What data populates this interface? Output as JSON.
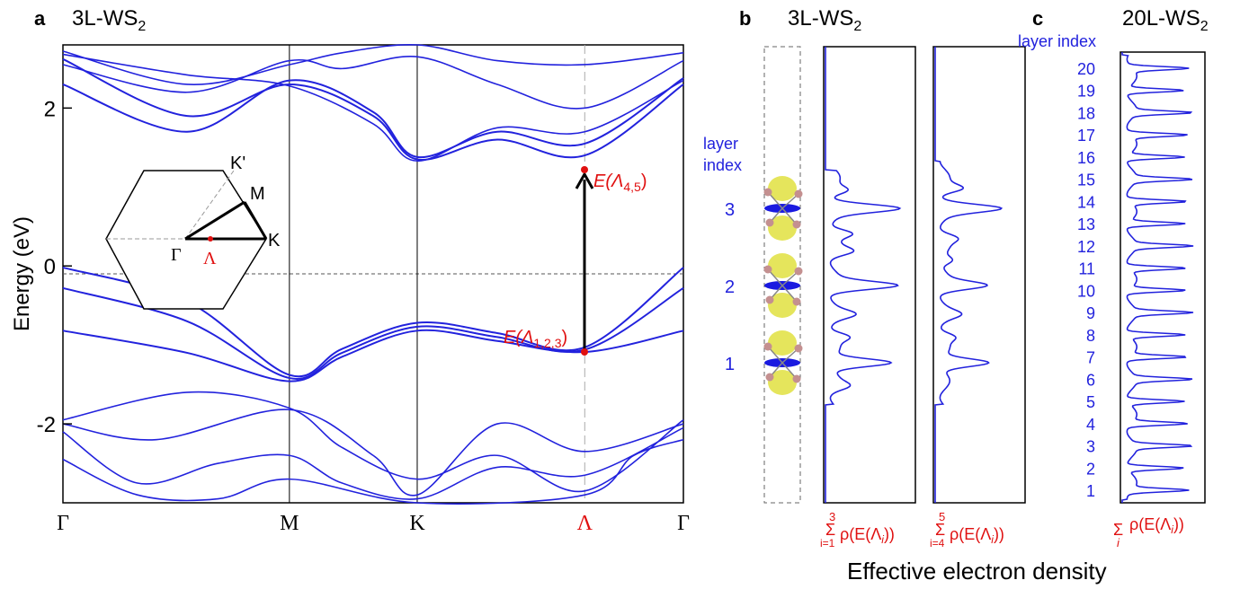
{
  "panel_a": {
    "letter": "a",
    "title_main": "3L-WS",
    "title_sub": "2",
    "ylabel": "Energy (eV)",
    "yticks": [
      {
        "v": 2,
        "label": "2"
      },
      {
        "v": 0,
        "label": "0"
      },
      {
        "v": -2,
        "label": "-2"
      }
    ],
    "kpoints": [
      {
        "label": "Γ",
        "x": 0.0,
        "red": false
      },
      {
        "label": "M",
        "x": 0.365,
        "red": false
      },
      {
        "label": "K",
        "x": 0.571,
        "red": false
      },
      {
        "label": "Λ",
        "x": 0.841,
        "red": true
      },
      {
        "label": "Γ",
        "x": 1.0,
        "red": false
      }
    ],
    "lower_point": {
      "label_main": "E(Λ",
      "label_sub": "1,2,3",
      "label_end": ")",
      "x": 0.841,
      "e": -1.03
    },
    "upper_point": {
      "label_main": "E(Λ",
      "label_sub": "4,5",
      "label_end": ")",
      "x": 0.841,
      "e": 1.4
    },
    "bz": {
      "K_prime": "K'",
      "M": "M",
      "K": "K",
      "Gamma": "Γ",
      "Lambda": "Λ"
    }
  },
  "panel_b": {
    "letter": "b",
    "title_main": "3L-WS",
    "title_sub": "2",
    "layer_axis_title_1": "layer",
    "layer_axis_title_2": "index",
    "layers": [
      "3",
      "2",
      "1"
    ],
    "sum1_top": "3",
    "sum1_bottom": "i=1",
    "sum2_top": "5",
    "sum2_bottom": "i=4",
    "sum_expr": "ρ(E(Λ",
    "sum_expr_sub": "i",
    "sum_expr_end": "))"
  },
  "panel_c": {
    "letter": "c",
    "title_main": "20L-WS",
    "title_sub": "2",
    "layer_axis_title": "layer index",
    "layers": [
      "20",
      "19",
      "18",
      "17",
      "16",
      "15",
      "14",
      "13",
      "12",
      "11",
      "10",
      "9",
      "8",
      "7",
      "6",
      "5",
      "4",
      "3",
      "2",
      "1"
    ],
    "sum_bottom": "i",
    "sum_expr": "ρ(E(Λ",
    "sum_expr_sub": "i",
    "sum_expr_end": "))"
  },
  "common_xlabel": "Effective electron density",
  "chart_data": [
    {
      "type": "line",
      "title": "3L-WS2",
      "ylabel": "Energy (eV)",
      "ylim": [
        -3.0,
        2.8
      ],
      "x_categories": [
        "Γ",
        "M",
        "K",
        "Λ",
        "Γ"
      ],
      "series": [
        {
          "values": [
            {
              "x": 0,
              "y": -0.02
            },
            {
              "x": 0.2,
              "y": -0.45
            },
            {
              "x": 0.365,
              "y": -1.38
            },
            {
              "x": 0.45,
              "y": -1.05
            },
            {
              "x": 0.571,
              "y": -0.72
            },
            {
              "x": 0.7,
              "y": -0.85
            },
            {
              "x": 0.841,
              "y": -1.03
            },
            {
              "x": 1,
              "y": -0.02
            }
          ]
        },
        {
          "values": [
            {
              "x": 0,
              "y": -0.28
            },
            {
              "x": 0.2,
              "y": -0.7
            },
            {
              "x": 0.365,
              "y": -1.42
            },
            {
              "x": 0.45,
              "y": -1.1
            },
            {
              "x": 0.571,
              "y": -0.77
            },
            {
              "x": 0.7,
              "y": -0.9
            },
            {
              "x": 0.841,
              "y": -1.06
            },
            {
              "x": 1,
              "y": -0.28
            }
          ]
        },
        {
          "values": [
            {
              "x": 0,
              "y": -0.82
            },
            {
              "x": 0.2,
              "y": -1.1
            },
            {
              "x": 0.365,
              "y": -1.46
            },
            {
              "x": 0.45,
              "y": -1.15
            },
            {
              "x": 0.571,
              "y": -0.82
            },
            {
              "x": 0.7,
              "y": -0.95
            },
            {
              "x": 0.841,
              "y": -1.09
            },
            {
              "x": 1,
              "y": -0.82
            }
          ]
        },
        {
          "values": [
            {
              "x": 0,
              "y": 2.62
            },
            {
              "x": 0.2,
              "y": 1.9
            },
            {
              "x": 0.365,
              "y": 2.3
            },
            {
              "x": 0.5,
              "y": 1.9
            },
            {
              "x": 0.571,
              "y": 1.35
            },
            {
              "x": 0.7,
              "y": 1.6
            },
            {
              "x": 0.841,
              "y": 1.4
            },
            {
              "x": 1,
              "y": 2.3
            }
          ]
        },
        {
          "values": [
            {
              "x": 0,
              "y": 2.3
            },
            {
              "x": 0.2,
              "y": 1.7
            },
            {
              "x": 0.365,
              "y": 2.35
            },
            {
              "x": 0.5,
              "y": 1.95
            },
            {
              "x": 0.571,
              "y": 1.38
            },
            {
              "x": 0.7,
              "y": 1.7
            },
            {
              "x": 0.841,
              "y": 1.55
            },
            {
              "x": 1,
              "y": 2.38
            }
          ]
        }
      ]
    },
    {
      "type": "line",
      "title": "3L-WS2",
      "xlabel": "Effective electron density",
      "layer_peaks": [
        {
          "layer": "1",
          "value": 1.0
        },
        {
          "layer": "2",
          "value": 1.0
        },
        {
          "layer": "3",
          "value": 1.0
        }
      ]
    },
    {
      "type": "line",
      "title": "20L-WS2",
      "xlabel": "Effective electron density",
      "layer_count": 20
    }
  ]
}
